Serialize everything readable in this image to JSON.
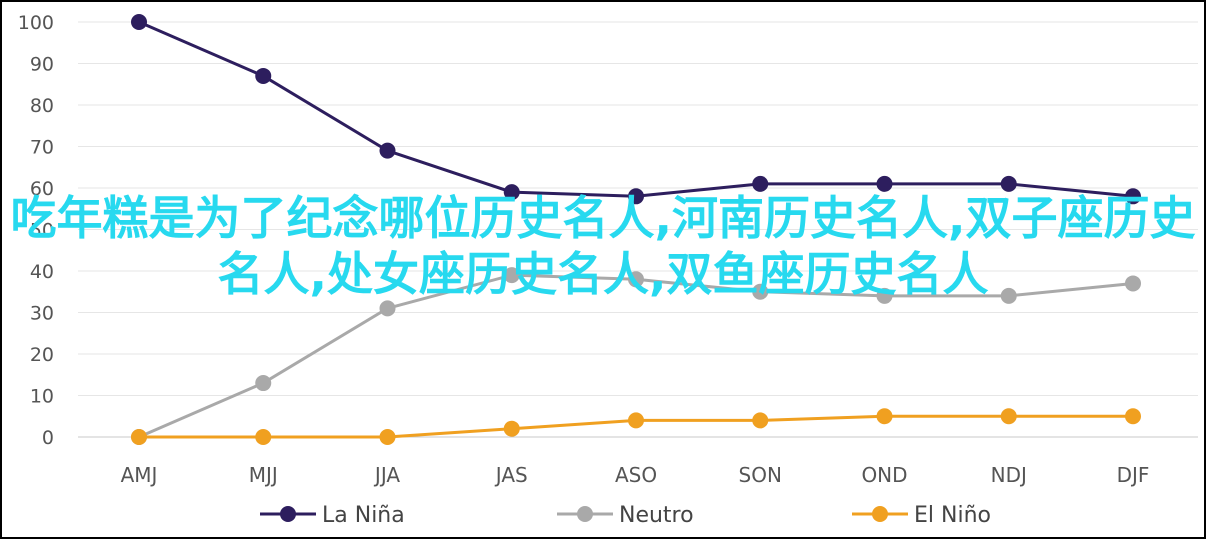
{
  "chart_data": {
    "type": "line",
    "categories": [
      "AMJ",
      "MJJ",
      "JJA",
      "JAS",
      "ASO",
      "SON",
      "OND",
      "NDJ",
      "DJF"
    ],
    "series": [
      {
        "name": "La Niña",
        "color": "#2d1e5e",
        "values": [
          100,
          87,
          69,
          59,
          58,
          61,
          61,
          61,
          58
        ]
      },
      {
        "name": "Neutro",
        "color": "#a9a9a9",
        "values": [
          0,
          13,
          31,
          39,
          38,
          35,
          34,
          34,
          37
        ]
      },
      {
        "name": "El Niño",
        "color": "#f0a020",
        "values": [
          0,
          0,
          0,
          2,
          4,
          4,
          5,
          5,
          5
        ]
      }
    ],
    "yticks": [
      "0",
      "10",
      "20",
      "30",
      "40",
      "50",
      "60",
      "70",
      "80",
      "90",
      "100"
    ],
    "ylim": [
      0,
      100
    ],
    "grid": true,
    "legend": "bottom-center"
  },
  "overlay": {
    "text": "吃年糕是为了纪念哪位历史名人,河南历史名人,双子座历史名人,处女座历史名人,双鱼座历史名人"
  }
}
